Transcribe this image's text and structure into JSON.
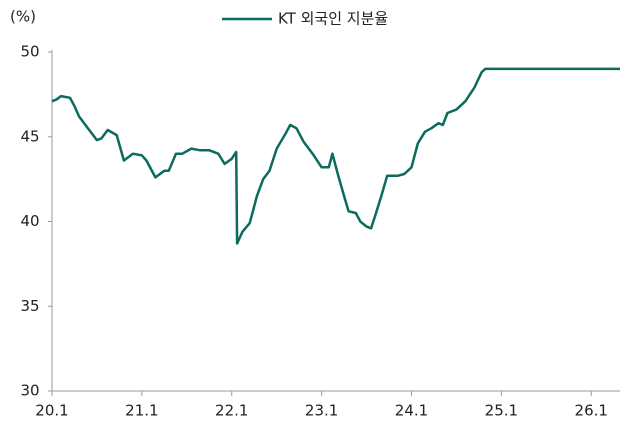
{
  "chart_data": {
    "type": "line",
    "y_unit_label": "(%)",
    "x": [
      2020.0,
      2020.05,
      2020.1,
      2020.2,
      2020.25,
      2020.3,
      2020.4,
      2020.5,
      2020.55,
      2020.62,
      2020.72,
      2020.8,
      2020.85,
      2020.9,
      2021.0,
      2021.05,
      2021.15,
      2021.25,
      2021.3,
      2021.38,
      2021.45,
      2021.55,
      2021.65,
      2021.75,
      2021.85,
      2021.92,
      2022.0,
      2022.05,
      2022.06,
      2022.12,
      2022.2,
      2022.28,
      2022.35,
      2022.42,
      2022.5,
      2022.6,
      2022.65,
      2022.72,
      2022.8,
      2022.9,
      2023.0,
      2023.08,
      2023.12,
      2023.18,
      2023.25,
      2023.3,
      2023.38,
      2023.43,
      2023.5,
      2023.55,
      2023.6,
      2023.67,
      2023.73,
      2023.85,
      2023.92,
      2024.0,
      2024.07,
      2024.15,
      2024.22,
      2024.3,
      2024.35,
      2024.4,
      2024.5,
      2024.6,
      2024.7,
      2024.78,
      2024.82,
      2024.9,
      2026.32
    ],
    "series": [
      {
        "name": "KT 외국인 지분율",
        "color": "#0d6b5e",
        "values": [
          47.1,
          47.2,
          47.4,
          47.3,
          46.8,
          46.2,
          45.5,
          44.8,
          44.9,
          45.4,
          45.1,
          43.6,
          43.8,
          44.0,
          43.9,
          43.6,
          42.6,
          43.0,
          43.0,
          44.0,
          44.0,
          44.3,
          44.2,
          44.2,
          44.0,
          43.4,
          43.7,
          44.1,
          38.7,
          39.4,
          39.9,
          41.5,
          42.5,
          43.0,
          44.3,
          45.2,
          45.7,
          45.5,
          44.7,
          44.0,
          43.2,
          43.2,
          44.0,
          42.8,
          41.5,
          40.6,
          40.5,
          40.0,
          39.7,
          39.6,
          40.4,
          41.6,
          42.7,
          42.7,
          42.8,
          43.2,
          44.6,
          45.3,
          45.5,
          45.8,
          45.7,
          46.4,
          46.6,
          47.1,
          47.9,
          48.8,
          49.0,
          49.0,
          49.0
        ]
      }
    ],
    "xlim": [
      2020.0,
      2026.32
    ],
    "xticks": [
      {
        "value": 2020,
        "label": "20.1"
      },
      {
        "value": 2021,
        "label": "21.1"
      },
      {
        "value": 2022,
        "label": "22.1"
      },
      {
        "value": 2023,
        "label": "23.1"
      },
      {
        "value": 2024,
        "label": "24.1"
      },
      {
        "value": 2025,
        "label": "25.1"
      },
      {
        "value": 2026,
        "label": "26.1"
      }
    ],
    "ylim": [
      30,
      50
    ],
    "yticks": [
      30,
      35,
      40,
      45,
      50
    ],
    "grid": false,
    "legend": "top"
  }
}
